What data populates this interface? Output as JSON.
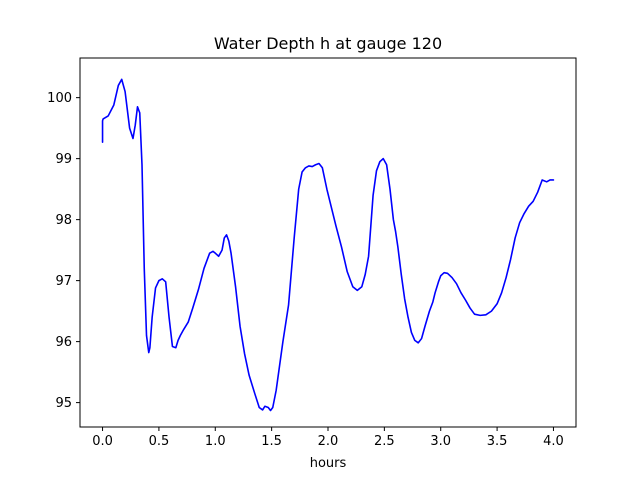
{
  "chart_data": {
    "type": "line",
    "title": "Water Depth h at gauge 120",
    "xlabel": "hours",
    "ylabel": "",
    "xlim": [
      -0.2,
      4.2
    ],
    "ylim": [
      94.6,
      100.65
    ],
    "xticks": [
      0.0,
      0.5,
      1.0,
      1.5,
      2.0,
      2.5,
      3.0,
      3.5,
      4.0
    ],
    "xtick_labels": [
      "0.0",
      "0.5",
      "1.0",
      "1.5",
      "2.0",
      "2.5",
      "3.0",
      "3.5",
      "4.0"
    ],
    "yticks": [
      95,
      96,
      97,
      98,
      99,
      100
    ],
    "ytick_labels": [
      "95",
      "96",
      "97",
      "98",
      "99",
      "100"
    ],
    "grid": false,
    "series": [
      {
        "color": "#0000ff",
        "x": [
          0.0,
          0.0,
          0.005,
          0.05,
          0.1,
          0.14,
          0.17,
          0.2,
          0.24,
          0.27,
          0.29,
          0.31,
          0.33,
          0.35,
          0.37,
          0.39,
          0.41,
          0.42,
          0.44,
          0.47,
          0.5,
          0.53,
          0.56,
          0.59,
          0.62,
          0.65,
          0.67,
          0.69,
          0.72,
          0.76,
          0.8,
          0.85,
          0.9,
          0.95,
          0.98,
          1.0,
          1.03,
          1.06,
          1.08,
          1.1,
          1.12,
          1.14,
          1.18,
          1.22,
          1.26,
          1.3,
          1.35,
          1.39,
          1.42,
          1.44,
          1.47,
          1.49,
          1.51,
          1.54,
          1.57,
          1.6,
          1.65,
          1.7,
          1.74,
          1.77,
          1.8,
          1.83,
          1.86,
          1.89,
          1.92,
          1.95,
          1.99,
          2.03,
          2.07,
          2.12,
          2.17,
          2.22,
          2.26,
          2.3,
          2.33,
          2.36,
          2.38,
          2.4,
          2.43,
          2.46,
          2.49,
          2.52,
          2.55,
          2.58,
          2.6,
          2.62,
          2.65,
          2.68,
          2.71,
          2.74,
          2.77,
          2.8,
          2.83,
          2.86,
          2.9,
          2.93,
          2.95,
          2.98,
          3.0,
          3.03,
          3.06,
          3.1,
          3.14,
          3.18,
          3.22,
          3.26,
          3.3,
          3.35,
          3.4,
          3.45,
          3.5,
          3.54,
          3.58,
          3.62,
          3.66,
          3.7,
          3.74,
          3.78,
          3.82,
          3.86,
          3.9,
          3.94,
          3.97,
          4.0
        ],
        "y": [
          99.27,
          99.62,
          99.65,
          99.7,
          99.88,
          100.2,
          100.3,
          100.1,
          99.5,
          99.33,
          99.55,
          99.85,
          99.75,
          98.9,
          97.2,
          96.1,
          95.82,
          95.9,
          96.4,
          96.88,
          97.0,
          97.03,
          96.98,
          96.4,
          95.92,
          95.9,
          96.02,
          96.1,
          96.2,
          96.32,
          96.55,
          96.85,
          97.2,
          97.45,
          97.48,
          97.45,
          97.4,
          97.5,
          97.7,
          97.75,
          97.65,
          97.45,
          96.9,
          96.25,
          95.8,
          95.45,
          95.15,
          94.92,
          94.88,
          94.94,
          94.92,
          94.87,
          94.92,
          95.2,
          95.6,
          96.0,
          96.6,
          97.7,
          98.5,
          98.78,
          98.85,
          98.88,
          98.87,
          98.9,
          98.92,
          98.85,
          98.5,
          98.2,
          97.9,
          97.55,
          97.15,
          96.9,
          96.84,
          96.9,
          97.1,
          97.4,
          97.9,
          98.4,
          98.8,
          98.95,
          99.0,
          98.9,
          98.5,
          98.0,
          97.8,
          97.55,
          97.1,
          96.7,
          96.4,
          96.15,
          96.02,
          95.98,
          96.05,
          96.25,
          96.5,
          96.65,
          96.8,
          96.98,
          97.08,
          97.13,
          97.12,
          97.05,
          96.95,
          96.8,
          96.68,
          96.55,
          96.45,
          96.43,
          96.44,
          96.5,
          96.62,
          96.8,
          97.05,
          97.35,
          97.7,
          97.95,
          98.1,
          98.22,
          98.3,
          98.45,
          98.65,
          98.62,
          98.65,
          98.65
        ]
      }
    ]
  }
}
